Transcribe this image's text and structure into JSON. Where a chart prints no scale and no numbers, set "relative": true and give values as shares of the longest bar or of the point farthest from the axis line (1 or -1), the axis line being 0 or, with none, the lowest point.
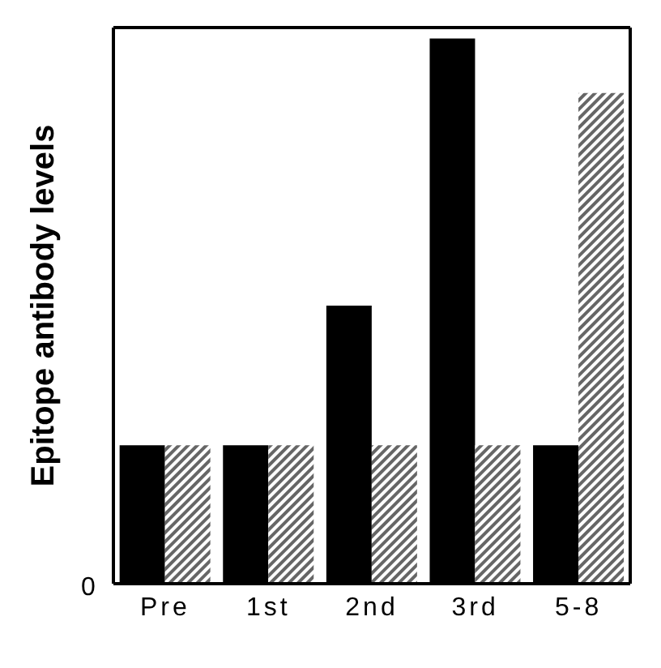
{
  "chart_data": {
    "type": "bar",
    "ylabel": "Epitope antibody levels",
    "categories": [
      "Pre",
      "1st",
      "2nd",
      "3rd",
      "5-8"
    ],
    "relative": true,
    "series": [
      {
        "color": "#000000",
        "values": [
          0.254,
          0.254,
          0.51,
          1,
          0.254
        ]
      },
      {
        "color": "#666666",
        "values": [
          0.254,
          0.254,
          0.254,
          0.254,
          0.9
        ]
      }
    ],
    "annotations": [
      "0"
    ]
  }
}
